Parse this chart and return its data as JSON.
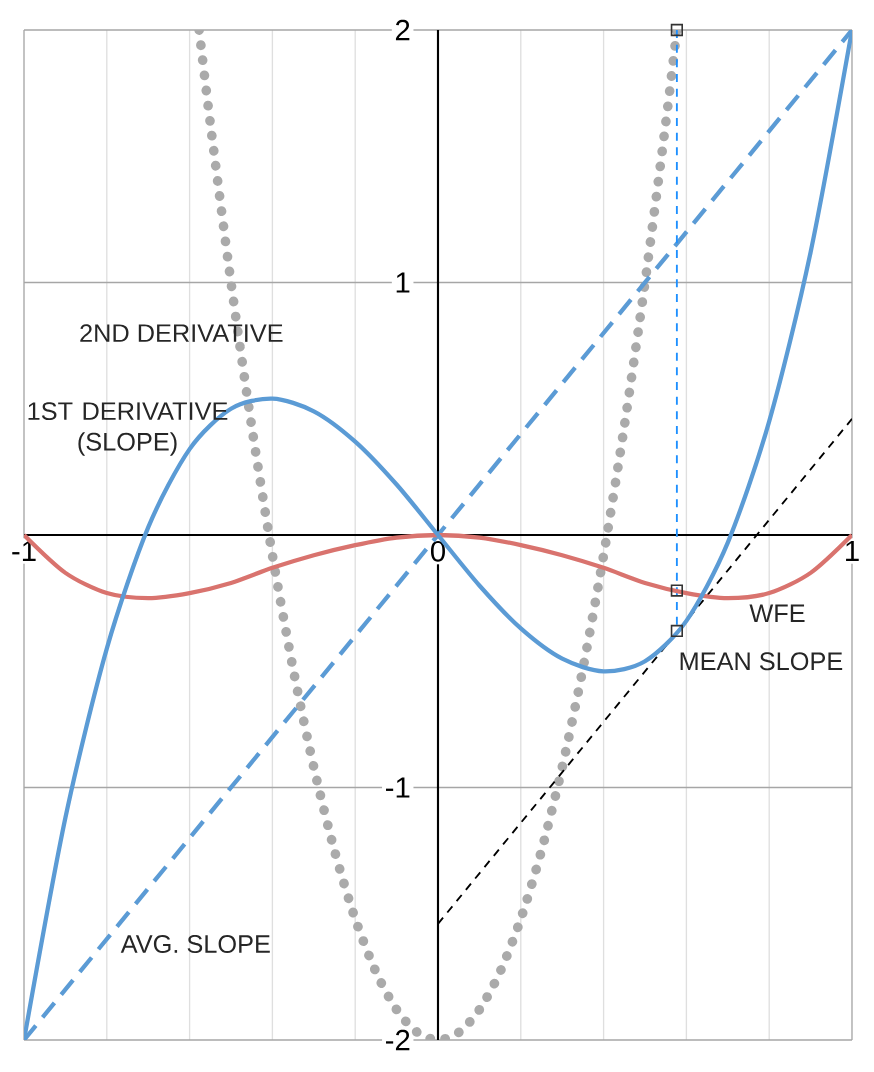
{
  "chart_data": {
    "type": "line",
    "xlim": [
      -1,
      1
    ],
    "ylim": [
      -2,
      2
    ],
    "xticks": [
      -1,
      0,
      1
    ],
    "yticks": [
      -2,
      -1,
      1,
      2
    ],
    "grid": true,
    "series": [
      {
        "color": "#aaaaaa",
        "line_style": "dotted",
        "x": [
          -0.577,
          -0.55,
          -0.5,
          -0.45,
          -0.4,
          -0.35,
          -0.3,
          -0.25,
          -0.2,
          -0.15,
          -0.1,
          -0.05,
          0,
          0.05,
          0.1,
          0.15,
          0.2,
          0.25,
          0.3,
          0.35,
          0.4,
          0.45,
          0.5,
          0.55,
          0.577
        ],
        "values": [
          2,
          1.63,
          1,
          0.43,
          -0.08,
          -0.53,
          -0.92,
          -1.25,
          -1.52,
          -1.73,
          -1.88,
          -1.97,
          -2,
          -1.97,
          -1.88,
          -1.73,
          -1.52,
          -1.25,
          -0.92,
          -0.53,
          -0.08,
          0.43,
          1,
          1.63,
          2
        ]
      },
      {
        "color": "#5b9bd5",
        "line_style": "dashed",
        "x": [
          -1,
          1
        ],
        "values": [
          -2,
          2
        ]
      },
      {
        "color": "#1e90ff",
        "line_style": "dashed",
        "x": [
          0.577,
          0.577
        ],
        "values": [
          2,
          -0.38
        ]
      },
      {
        "color": "#000000",
        "line_style": "dashed",
        "x": [
          0,
          1
        ],
        "values": [
          -1.54,
          0.46
        ]
      },
      {
        "color": "#d9736e",
        "line_style": "solid",
        "x": [
          -1,
          -0.9,
          -0.8,
          -0.7,
          -0.6,
          -0.5,
          -0.4,
          -0.3,
          -0.2,
          -0.1,
          0,
          0.1,
          0.2,
          0.3,
          0.4,
          0.5,
          0.6,
          0.7,
          0.8,
          0.9,
          1
        ],
        "values": [
          0,
          -0.15,
          -0.23,
          -0.25,
          -0.23,
          -0.19,
          -0.13,
          -0.08,
          -0.04,
          -0.01,
          0,
          -0.01,
          -0.04,
          -0.08,
          -0.13,
          -0.19,
          -0.23,
          -0.25,
          -0.23,
          -0.15,
          0
        ]
      },
      {
        "color": "#5b9bd5",
        "line_style": "solid",
        "x": [
          -1,
          -0.9,
          -0.8,
          -0.7,
          -0.6,
          -0.5,
          -0.4,
          -0.3,
          -0.2,
          -0.1,
          0,
          0.1,
          0.2,
          0.3,
          0.4,
          0.5,
          0.6,
          0.7,
          0.8,
          0.9,
          1
        ],
        "values": [
          -2,
          -1.12,
          -0.45,
          0.03,
          0.34,
          0.5,
          0.54,
          0.49,
          0.37,
          0.2,
          0,
          -0.2,
          -0.37,
          -0.49,
          -0.54,
          -0.5,
          -0.34,
          -0.03,
          0.45,
          1.12,
          2
        ]
      },
      {
        "type": "scatter",
        "color": "#333333",
        "marker": "square",
        "x": [
          0.577,
          0.577,
          0.577
        ],
        "values": [
          2,
          -0.22,
          -0.38
        ]
      }
    ],
    "annotations": [
      "2ND DERIVATIVE",
      "1ST DERIVATIVE (SLOPE)",
      "AVG. SLOPE",
      "WFE",
      "MEAN SLOPE"
    ]
  }
}
